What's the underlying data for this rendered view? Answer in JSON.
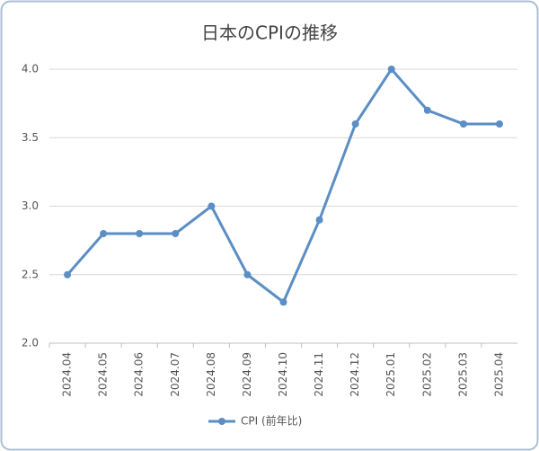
{
  "chart_data": {
    "type": "line",
    "title": "日本のCPIの推移",
    "categories": [
      "2024.04",
      "2024.05",
      "2024.06",
      "2024.07",
      "2024.08",
      "2024.09",
      "2024.10",
      "2024.11",
      "2024.12",
      "2025.01",
      "2025.02",
      "2025.03",
      "2025.04"
    ],
    "series": [
      {
        "name": "CPI (前年比)",
        "color": "#5b8ec4",
        "values": [
          2.5,
          2.8,
          2.8,
          2.8,
          3.0,
          2.5,
          2.3,
          2.9,
          3.6,
          4.0,
          3.7,
          3.6,
          3.6
        ]
      }
    ],
    "ylim": [
      2.0,
      4.0
    ],
    "yticks": [
      {
        "value": 2.0,
        "label": "2.0"
      },
      {
        "value": 2.5,
        "label": "2.5"
      },
      {
        "value": 3.0,
        "label": "3.0"
      },
      {
        "value": 3.5,
        "label": "3.5"
      },
      {
        "value": 4.0,
        "label": "4.0"
      }
    ],
    "grid": true,
    "legend": "bottom"
  }
}
